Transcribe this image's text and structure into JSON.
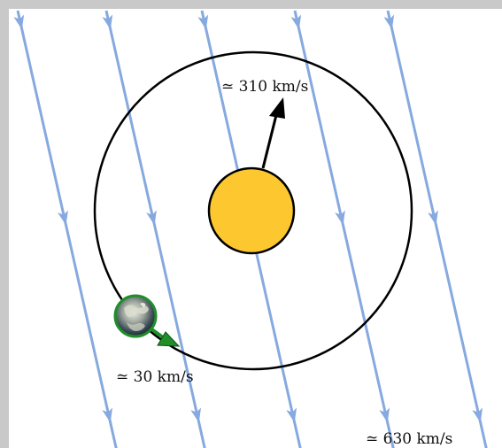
{
  "labels": {
    "sun_velocity": "≃ 310 km/s",
    "earth_velocity": "≃ 30 km/s",
    "wind_velocity": "≃ 630 km/s"
  },
  "icons": {
    "sun": "sun-icon",
    "earth": "earth-icon"
  },
  "colors": {
    "wind": "#86a9e0",
    "sun_fill": "#fdc82f",
    "earth_arrow": "#1f8f2a",
    "orbit": "#000000",
    "frame": "#c9c9c9"
  }
}
